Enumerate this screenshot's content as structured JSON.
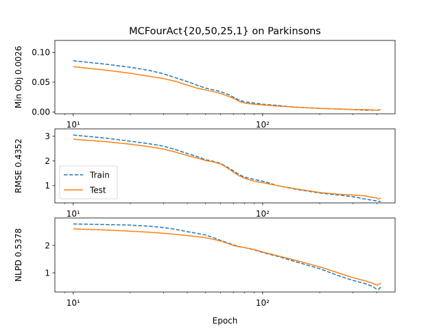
{
  "chart_data": {
    "type": "line",
    "title": "MCFourAct{20,50,25,1} on Parkinsons",
    "xlabel": "Epoch",
    "x_scale": "log",
    "xlim": [
      8,
      500
    ],
    "x_ticks": [
      10,
      100
    ],
    "x_tick_labels": [
      "10¹",
      "10²"
    ],
    "x_tick_labels_shown_on": "all panels",
    "legend": {
      "panel": 1,
      "location": "lower-left",
      "entries": [
        "Train",
        "Test"
      ]
    },
    "colors": {
      "Train": "#1f77b4",
      "Test": "#ff7f0e"
    },
    "line_styles": {
      "Train": "dashed",
      "Test": "solid"
    },
    "panels": [
      {
        "ylabel": "Min Obj 0.0026",
        "ylim": [
          -0.003,
          0.12
        ],
        "y_ticks": [
          0.0,
          0.05,
          0.1
        ],
        "y_tick_labels": [
          "0.00",
          "0.05",
          "0.10"
        ],
        "series": [
          {
            "name": "Train",
            "style": "dashed",
            "x": [
              10,
              15,
              20,
              25,
              30,
              35,
              40,
              45,
              50,
              55,
              60,
              65,
              70,
              75,
              80,
              90,
              100,
              120,
              150,
              200,
              250,
              300,
              350,
              400,
              420
            ],
            "y": [
              0.086,
              0.08,
              0.075,
              0.07,
              0.064,
              0.057,
              0.051,
              0.045,
              0.04,
              0.037,
              0.034,
              0.03,
              0.025,
              0.02,
              0.017,
              0.015,
              0.013,
              0.011,
              0.008,
              0.006,
              0.005,
              0.004,
              0.003,
              0.003,
              0.003
            ]
          },
          {
            "name": "Test",
            "style": "solid",
            "x": [
              10,
              15,
              20,
              25,
              30,
              35,
              40,
              45,
              50,
              55,
              60,
              65,
              70,
              75,
              80,
              90,
              100,
              120,
              150,
              200,
              250,
              300,
              350,
              400,
              420
            ],
            "y": [
              0.076,
              0.07,
              0.065,
              0.06,
              0.056,
              0.051,
              0.045,
              0.04,
              0.037,
              0.034,
              0.031,
              0.027,
              0.023,
              0.018,
              0.015,
              0.013,
              0.012,
              0.01,
              0.008,
              0.006,
              0.005,
              0.004,
              0.004,
              0.003,
              0.004
            ]
          }
        ]
      },
      {
        "ylabel": "RMSE 0.4352",
        "ylim": [
          0.3,
          3.3
        ],
        "y_ticks": [
          1,
          2,
          3
        ],
        "y_tick_labels": [
          "1",
          "2",
          "3"
        ],
        "series": [
          {
            "name": "Train",
            "style": "dashed",
            "x": [
              10,
              15,
              20,
              25,
              30,
              35,
              40,
              45,
              50,
              55,
              60,
              65,
              70,
              75,
              80,
              90,
              100,
              120,
              150,
              200,
              250,
              300,
              350,
              400,
              420
            ],
            "y": [
              3.05,
              2.92,
              2.8,
              2.7,
              2.6,
              2.45,
              2.3,
              2.18,
              2.05,
              1.98,
              1.9,
              1.75,
              1.6,
              1.45,
              1.35,
              1.25,
              1.18,
              1.0,
              0.85,
              0.7,
              0.62,
              0.55,
              0.45,
              0.38,
              0.35
            ]
          },
          {
            "name": "Test",
            "style": "solid",
            "x": [
              10,
              15,
              20,
              25,
              30,
              35,
              40,
              45,
              50,
              55,
              60,
              65,
              70,
              75,
              80,
              90,
              100,
              120,
              150,
              200,
              250,
              300,
              350,
              380,
              400,
              410,
              420
            ],
            "y": [
              2.88,
              2.78,
              2.68,
              2.58,
              2.48,
              2.35,
              2.22,
              2.12,
              2.02,
              1.96,
              1.88,
              1.72,
              1.55,
              1.4,
              1.3,
              1.18,
              1.12,
              1.0,
              0.87,
              0.72,
              0.65,
              0.62,
              0.58,
              0.52,
              0.5,
              0.45,
              0.5
            ]
          }
        ]
      },
      {
        "ylabel": "NLPD 0.5378",
        "ylim": [
          0.3,
          3.0
        ],
        "y_ticks": [
          1,
          2
        ],
        "y_tick_labels": [
          "1",
          "2"
        ],
        "series": [
          {
            "name": "Train",
            "style": "dashed",
            "x": [
              10,
              15,
              20,
              25,
              30,
              35,
              40,
              45,
              50,
              55,
              60,
              65,
              70,
              75,
              80,
              90,
              100,
              120,
              150,
              200,
              250,
              300,
              350,
              380,
              400,
              410,
              420
            ],
            "y": [
              2.78,
              2.76,
              2.74,
              2.7,
              2.65,
              2.58,
              2.5,
              2.44,
              2.38,
              2.28,
              2.18,
              2.1,
              2.02,
              1.96,
              1.92,
              1.84,
              1.74,
              1.6,
              1.4,
              1.15,
              0.9,
              0.72,
              0.6,
              0.5,
              0.4,
              0.4,
              0.48
            ]
          },
          {
            "name": "Test",
            "style": "solid",
            "x": [
              10,
              15,
              20,
              25,
              30,
              35,
              40,
              45,
              50,
              55,
              60,
              65,
              70,
              75,
              80,
              90,
              100,
              120,
              150,
              200,
              250,
              300,
              350,
              380,
              400,
              410,
              420
            ],
            "y": [
              2.6,
              2.56,
              2.52,
              2.48,
              2.44,
              2.4,
              2.36,
              2.32,
              2.28,
              2.22,
              2.16,
              2.08,
              2.0,
              1.95,
              1.92,
              1.85,
              1.76,
              1.62,
              1.45,
              1.22,
              1.0,
              0.82,
              0.7,
              0.62,
              0.55,
              0.58,
              0.62
            ]
          }
        ]
      }
    ]
  }
}
